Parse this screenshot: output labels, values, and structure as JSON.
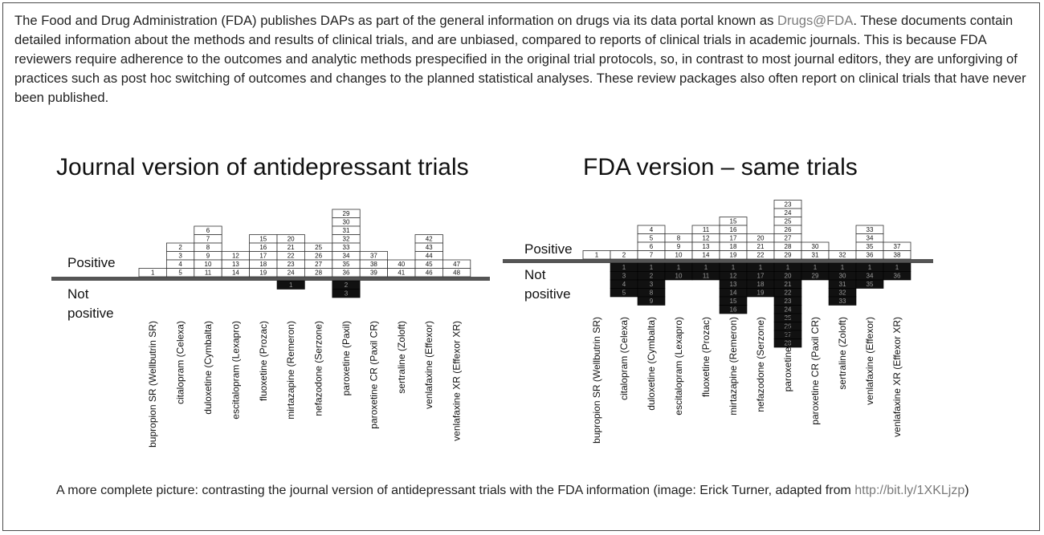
{
  "intro": {
    "text_before_link": "The Food and Drug Administration (FDA) publishes DAPs as part of the general information on drugs via its data portal known as ",
    "link": "Drugs@FDA",
    "text_after_link": ". These documents contain detailed information about the methods and results of clinical trials, and are unbiased, compared to reports of clinical trials in academic journals. This is because FDA reviewers require adherence to the outcomes and analytic methods prespecified in the original trial protocols, so, in contrast to most journal editors, they are unforgiving of practices such as post hoc switching of outcomes and changes to the planned statistical analyses. These review packages also often report on clinical trials that have never been published."
  },
  "caption": {
    "text": "A more complete picture: contrasting the journal version of antidepressant trials with the FDA information (image: Erick Turner, adapted from ",
    "link": "http://bit.ly/1XKLjzp",
    "text_end": ")"
  },
  "colors": {
    "positive_box": "#ffffff",
    "not_positive_box": "#111111",
    "baseline": "#555555",
    "link": "#7b7b7b"
  },
  "chart_data": [
    {
      "type": "bar",
      "title": "Journal version of antidepressant trials",
      "positive_label": "Positive",
      "not_positive_label": "Not positive",
      "categories": [
        "bupropion SR (Wellbutrin SR)",
        "citalopram (Celexa)",
        "duloxetine (Cymbalta)",
        "escitalopram (Lexapro)",
        "fluoxetine (Prozac)",
        "mirtazapine (Remeron)",
        "nefazodone (Serzone)",
        "paroxetine (Paxil)",
        "paroxetine CR (Paxil CR)",
        "sertraline (Zoloft)",
        "venlafaxine (Effexor)",
        "venlafaxine XR (Effexor XR)"
      ],
      "positive": [
        [
          "1"
        ],
        [
          "2",
          "3",
          "4",
          "5"
        ],
        [
          "6",
          "7",
          "8",
          "9",
          "10",
          "11"
        ],
        [
          "12",
          "13",
          "14"
        ],
        [
          "15",
          "16",
          "17",
          "18",
          "19"
        ],
        [
          "20",
          "21",
          "22",
          "23",
          "24"
        ],
        [
          "25",
          "26",
          "27",
          "28"
        ],
        [
          "29",
          "30",
          "31",
          "32",
          "33",
          "34",
          "35",
          "36"
        ],
        [
          "37",
          "38",
          "39"
        ],
        [
          "40",
          "41"
        ],
        [
          "42",
          "43",
          "44",
          "45",
          "46"
        ],
        [
          "47",
          "48"
        ]
      ],
      "not_positive": [
        [],
        [],
        [],
        [],
        [],
        [
          "1"
        ],
        [],
        [
          "2",
          "3"
        ],
        [],
        [],
        [],
        []
      ]
    },
    {
      "type": "bar",
      "title": "FDA version – same trials",
      "positive_label": "Positive",
      "not_positive_label": "Not positive",
      "categories": [
        "bupropion SR (Wellbutrin SR)",
        "citalopram (Celexa)",
        "duloxetine (Cymbalta)",
        "escitalopram (Lexapro)",
        "fluoxetine (Prozac)",
        "mirtazapine (Remeron)",
        "nefazodone (Serzone)",
        "paroxetine (Paxil)",
        "paroxetine CR (Paxil CR)",
        "sertraline (Zoloft)",
        "venlafaxine (Effexor)",
        "venlafaxine XR (Effexor XR)"
      ],
      "positive": [
        [
          "1"
        ],
        [
          "2"
        ],
        [
          "4",
          "5",
          "6",
          "7"
        ],
        [
          "8",
          "9",
          "10"
        ],
        [
          "11",
          "12",
          "13",
          "14"
        ],
        [
          "15",
          "16",
          "17",
          "18",
          "19"
        ],
        [
          "20",
          "21",
          "22"
        ],
        [
          "23",
          "24",
          "25",
          "26",
          "27",
          "28",
          "29"
        ],
        [
          "30",
          "31"
        ],
        [
          "32"
        ],
        [
          "33",
          "34",
          "35",
          "36"
        ],
        [
          "37",
          "38"
        ]
      ],
      "not_positive": [
        [],
        [
          "1",
          "3",
          "4",
          "5"
        ],
        [
          "1",
          "2",
          "3",
          "8",
          "9"
        ],
        [
          "1",
          "10"
        ],
        [
          "1",
          "11"
        ],
        [
          "1",
          "12",
          "13",
          "14",
          "15",
          "16"
        ],
        [
          "1",
          "17",
          "18",
          "19"
        ],
        [
          "1",
          "20",
          "21",
          "22",
          "23",
          "24",
          "25",
          "26",
          "27",
          "28"
        ],
        [
          "1",
          "29"
        ],
        [
          "1",
          "30",
          "31",
          "32",
          "33"
        ],
        [
          "1",
          "34",
          "35"
        ],
        [
          "1",
          "36"
        ]
      ]
    }
  ]
}
